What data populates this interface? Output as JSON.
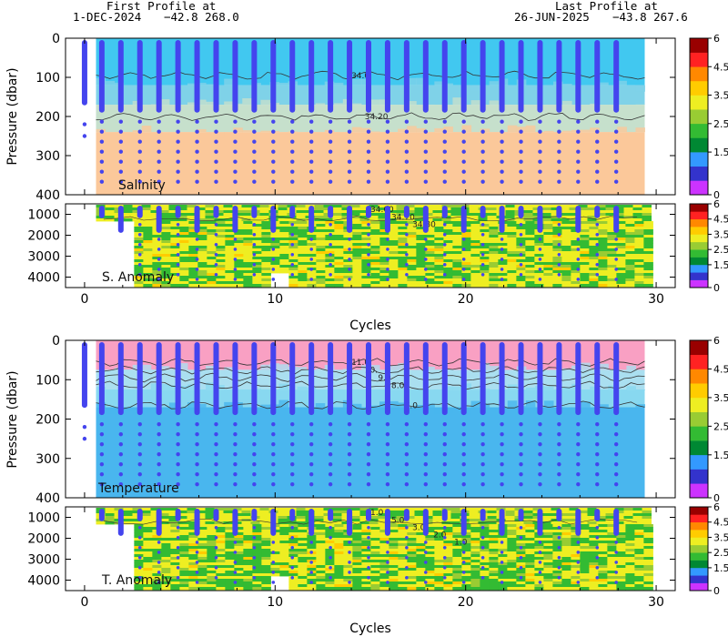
{
  "header": {
    "first_title": "First Profile at",
    "first_date": "1-DEC-2024",
    "first_coords": "−42.8  268.0",
    "last_title": "Last Profile at",
    "last_date": "26-JUN-2025",
    "last_coords": "−43.8  267.6"
  },
  "colors": {
    "palette": [
      "#cc33ff",
      "#3333cc",
      "#3399ff",
      "#008833",
      "#33bb33",
      "#99cc33",
      "#eeee22",
      "#ffcc00",
      "#ff8800",
      "#ff2222",
      "#990000"
    ],
    "profile_dots": "#4444ee"
  },
  "chart_data": [
    {
      "type": "heatmap",
      "id": "salinity",
      "label": "Salinity",
      "ylabel": "Pressure (dbar)",
      "ylim": [
        400,
        0
      ],
      "yticks": [
        "0",
        "100",
        "200",
        "300",
        "400"
      ],
      "xlim": [
        -1,
        31
      ],
      "bands": [
        {
          "from": 0,
          "to": 120,
          "color": "#41c8f0"
        },
        {
          "from": 120,
          "to": 170,
          "color": "#7fd2e8"
        },
        {
          "from": 170,
          "to": 240,
          "color": "#c6e0cc"
        },
        {
          "from": 240,
          "to": 400,
          "color": "#fbc89a"
        }
      ],
      "contours": [
        {
          "label": "34.0",
          "depth": 95
        },
        {
          "label": "34.20",
          "depth": 200
        }
      ]
    },
    {
      "type": "heatmap",
      "id": "salinity-anomaly",
      "label": "S. Anomaly",
      "ylim": [
        4500,
        500
      ],
      "yticks": [
        "1000",
        "2000",
        "3000",
        "4000"
      ],
      "xlim": [
        -1,
        31
      ],
      "contour_labels": [
        "34.60",
        "34.70",
        "34.80"
      ]
    },
    {
      "type": "heatmap",
      "id": "temperature",
      "label": "Temperature",
      "ylabel": "Pressure (dbar)",
      "ylim": [
        400,
        0
      ],
      "yticks": [
        "0",
        "100",
        "200",
        "300",
        "400"
      ],
      "xlim": [
        -1,
        31
      ],
      "bands": [
        {
          "from": 0,
          "to": 75,
          "color": "#f9a0c3"
        },
        {
          "from": 75,
          "to": 125,
          "color": "#aadff0"
        },
        {
          "from": 125,
          "to": 170,
          "color": "#88d8f0"
        },
        {
          "from": 170,
          "to": 400,
          "color": "#49b6ee"
        }
      ],
      "contours": [
        {
          "label": "11.0",
          "depth": 55
        },
        {
          "label": "10.",
          "depth": 75
        },
        {
          "label": "9.0",
          "depth": 95
        },
        {
          "label": "8.0",
          "depth": 115
        },
        {
          "label": "7.0",
          "depth": 165
        }
      ]
    },
    {
      "type": "heatmap",
      "id": "temperature-anomaly",
      "label": "T. Anomaly",
      "ylim": [
        4500,
        500
      ],
      "yticks": [
        "1000",
        "2000",
        "3000",
        "4000"
      ],
      "xlim": [
        -1,
        31
      ],
      "contour_labels": [
        "1.0",
        "5.0",
        "3.0",
        "2.0",
        "1.0"
      ]
    }
  ],
  "x_axis": {
    "label": "Cycles",
    "ticks": [
      "0",
      "10",
      "20",
      "30"
    ],
    "tick_values": [
      0,
      10,
      20,
      30
    ]
  },
  "colorbar": {
    "ticks": [
      "0",
      "1.5",
      "2.5",
      "3.5",
      "4.5",
      "6"
    ]
  }
}
